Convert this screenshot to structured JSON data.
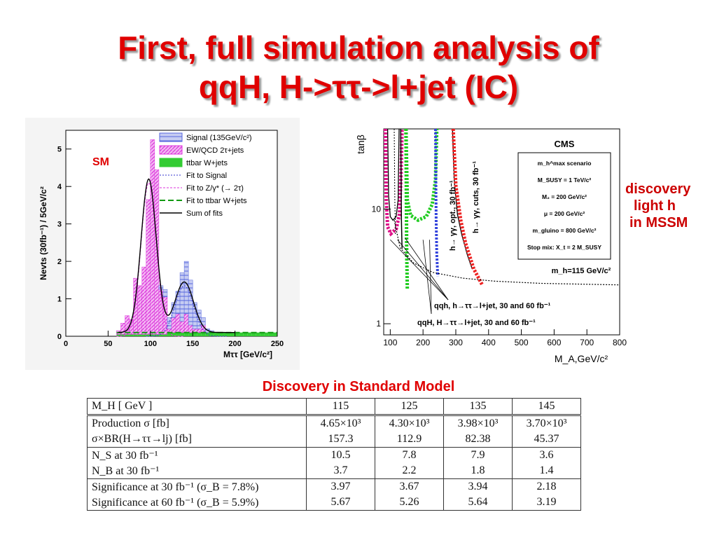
{
  "slide": {
    "title_line1": "First, full simulation analysis of",
    "title_line2": "qqH, H->ττ->l+jet (IC)",
    "mssm_label_line1": "discovery",
    "mssm_label_line2": "light h",
    "mssm_label_line3": "in MSSM",
    "sm_caption": "Discovery in Standard Model"
  },
  "chart_data": [
    {
      "type": "bar",
      "ylabel": "Nevts (30fb⁻¹) / 5GeV/c²",
      "xlabel": "Mττ [GeV/c²]",
      "annotation": "SM",
      "xlim": [
        0,
        250
      ],
      "ylim": [
        0,
        5.5
      ],
      "x_ticks": [
        "0",
        "50",
        "100",
        "150",
        "200",
        "250"
      ],
      "y_ticks": [
        "0",
        "1",
        "2",
        "3",
        "4",
        "5"
      ],
      "legend_position": "top-right",
      "legend": [
        "Signal (135GeV/c²)",
        "EW/QCD 2τ+jets",
        "ttbar W+jets",
        "Fit to Signal",
        "Fit to Z/γ* (→ 2τ)",
        "Fit to ttbar W+jets",
        "Sum of fits"
      ],
      "bin_width": 5,
      "bins_x": [
        60,
        65,
        70,
        75,
        80,
        85,
        90,
        95,
        100,
        105,
        110,
        115,
        120,
        125,
        130,
        135,
        140,
        145,
        150,
        155,
        160,
        165,
        170,
        175,
        180,
        185,
        190,
        195,
        200,
        205,
        210,
        215,
        220,
        225,
        230,
        235,
        240,
        245
      ],
      "series": [
        {
          "name": "ttbar W+jets",
          "values": [
            0.05,
            0.05,
            0.05,
            0.05,
            0.05,
            0.05,
            0.05,
            0.05,
            0.05,
            0.05,
            0.05,
            0.05,
            0.1,
            0.1,
            0.1,
            0.1,
            0.1,
            0.1,
            0.1,
            0.1,
            0.1,
            0.1,
            0.1,
            0.1,
            0.1,
            0.1,
            0.1,
            0.1,
            0.1,
            0.1,
            0.1,
            0.1,
            0.1,
            0.1,
            0.1,
            0.1,
            0.1,
            0.1
          ]
        },
        {
          "name": "EW/QCD 2τ+jets",
          "values": [
            0.1,
            0.3,
            0.5,
            0.4,
            1.5,
            1.3,
            1.8,
            3.6,
            5.2,
            4.4,
            1.2,
            1.0,
            0.1,
            0.4,
            0.5,
            0.3,
            0.5,
            0.2,
            0.1,
            0.1,
            0.2,
            0,
            0,
            0,
            0,
            0,
            0,
            0,
            0,
            0,
            0,
            0,
            0,
            0,
            0,
            0,
            0,
            0
          ]
        },
        {
          "name": "Signal (135GeV/c²)",
          "values": [
            0,
            0,
            0,
            0,
            0,
            0,
            0,
            0,
            0,
            0,
            0.1,
            0.2,
            0.3,
            0.4,
            0.6,
            1.3,
            1.4,
            1.2,
            0.7,
            0.5,
            0.2,
            0.1,
            0.05,
            0,
            0,
            0,
            0,
            0,
            0,
            0,
            0,
            0,
            0,
            0,
            0,
            0,
            0,
            0
          ]
        }
      ],
      "fits": [
        {
          "name": "Fit to Signal",
          "mean": 140,
          "sigma": 11,
          "amp": 1.35
        },
        {
          "name": "Fit to Z/γ* (→ 2τ)",
          "mean": 98,
          "sigma": 9,
          "amp": 4.1
        },
        {
          "name": "Fit to ttbar W+jets",
          "level": 0.1
        }
      ]
    },
    {
      "type": "line",
      "annotation": "CMS",
      "xlabel": "M_A,GeV/c²",
      "ylabel": "tanβ",
      "xlim": [
        80,
        800
      ],
      "ylim": [
        0.8,
        50
      ],
      "y_scale": "log",
      "x_ticks": [
        "100",
        "200",
        "300",
        "400",
        "500",
        "600",
        "700",
        "800"
      ],
      "y_ticks": [
        "1",
        "10"
      ],
      "scenario_lines": [
        "m_h^max scenario",
        "M_SUSY = 1 TeV/c²",
        "M₂ = 200 GeV/c²",
        "μ = 200 GeV/c²",
        "m_gluino = 800 GeV/c²",
        "Stop mix: X_t = 2 M_SUSY"
      ],
      "contour_labels": {
        "h_gg_opt": "h→ γγ, opt., 30 fb⁻¹",
        "h_gg_cuts": "h→ γγ, cuts, 30 fb⁻¹",
        "mh_line": "m_h=115 GeV/c²",
        "qqh_light": "qqh, h→ττ→l+jet, 30 and 60 fb⁻¹",
        "qqH_heavy": "qqH, H→ττ→l+jet, 30 and 60 fb⁻¹"
      }
    }
  ],
  "table": {
    "header": [
      "M_H [ GeV ]",
      "115",
      "125",
      "135",
      "145"
    ],
    "rows": [
      {
        "label": "Production σ [fb]",
        "values": [
          "4.65×10³",
          "4.30×10³",
          "3.98×10³",
          "3.70×10³"
        ]
      },
      {
        "label": "σ×BR(H→ττ→lj) [fb]",
        "values": [
          "157.3",
          "112.9",
          "82.38",
          "45.37"
        ]
      },
      {
        "label": "N_S at 30 fb⁻¹",
        "values": [
          "10.5",
          "7.8",
          "7.9",
          "3.6"
        ]
      },
      {
        "label": "N_B at 30 fb⁻¹",
        "values": [
          "3.7",
          "2.2",
          "1.8",
          "1.4"
        ]
      },
      {
        "label": "Significance at 30 fb⁻¹ (σ_B = 7.8%)",
        "values": [
          "3.97",
          "3.67",
          "3.94",
          "2.18"
        ]
      },
      {
        "label": "Significance at 60 fb⁻¹ (σ_B = 5.9%)",
        "values": [
          "5.67",
          "5.26",
          "5.64",
          "3.19"
        ]
      }
    ]
  },
  "colors": {
    "title": "#e00000",
    "signal": "#5566dd",
    "ewqcd": "#dd33dd",
    "ttbar": "#33cc33",
    "contour_magenta": "#dd1188",
    "contour_green": "#22cc22",
    "contour_blue": "#3344dd",
    "contour_red": "#ee2222"
  }
}
